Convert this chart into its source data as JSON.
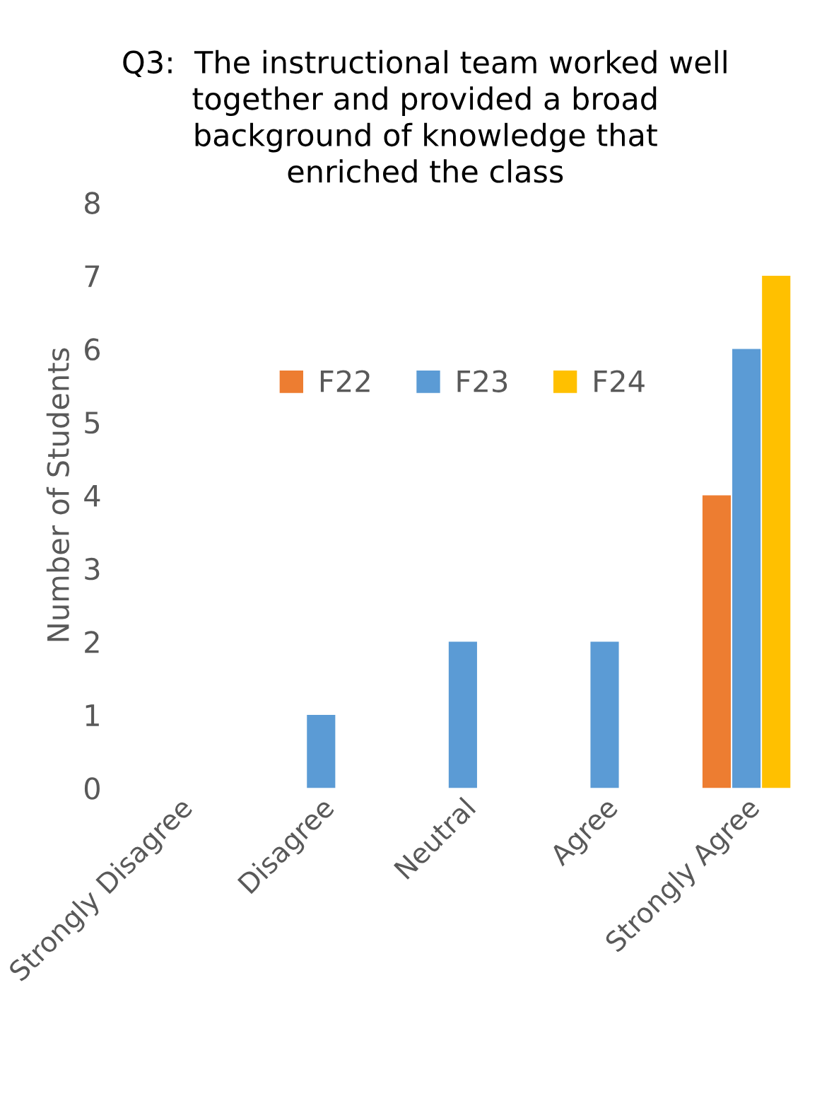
{
  "chart_data": {
    "type": "bar",
    "title": "Q3:  The instructional team worked well\ntogether and provided a broad\nbackground of knowledge that\nenriched the class",
    "ylabel": "Number of Students",
    "categories": [
      "Strongly Disagree",
      "Disagree",
      "Neutral",
      "Agree",
      "Strongly Agree"
    ],
    "series": [
      {
        "name": "F22",
        "color": "#ed7d31",
        "values": [
          0,
          0,
          0,
          0,
          4
        ]
      },
      {
        "name": "F23",
        "color": "#5b9bd5",
        "values": [
          0,
          1,
          2,
          2,
          6
        ]
      },
      {
        "name": "F24",
        "color": "#ffc000",
        "values": [
          0,
          0,
          0,
          0,
          7
        ]
      }
    ],
    "ylim": [
      0,
      8
    ],
    "yticks": [
      0,
      1,
      2,
      3,
      4,
      5,
      6,
      7,
      8
    ],
    "grid": false,
    "legend": "top"
  }
}
